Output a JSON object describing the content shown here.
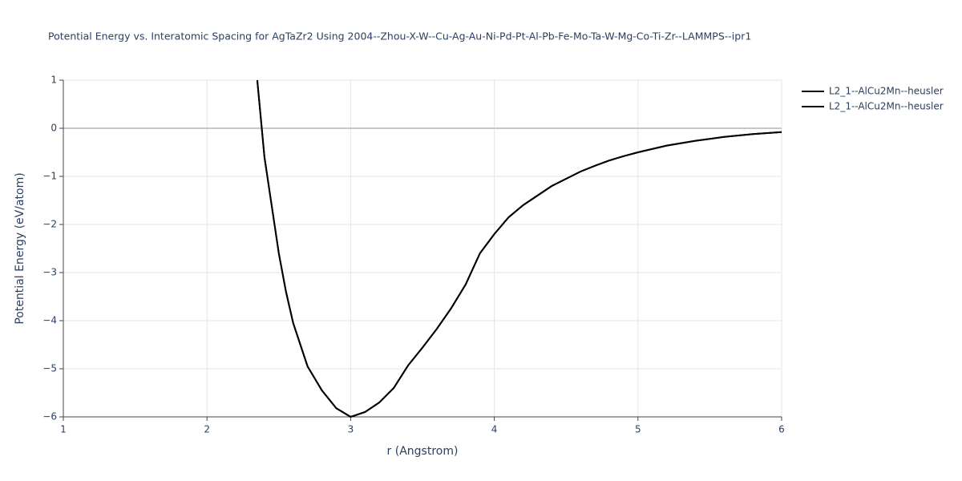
{
  "chart_data": {
    "type": "line",
    "title": "Potential Energy vs. Interatomic Spacing for AgTaZr2 Using 2004--Zhou-X-W--Cu-Ag-Au-Ni-Pd-Pt-Al-Pb-Fe-Mo-Ta-W-Mg-Co-Ti-Zr--LAMMPS--ipr1",
    "x_label": "r (Angstrom)",
    "y_label": "Potential Energy (eV/atom)",
    "x": [
      2.35,
      2.4,
      2.45,
      2.5,
      2.55,
      2.6,
      2.7,
      2.8,
      2.9,
      3.0,
      3.1,
      3.2,
      3.3,
      3.4,
      3.5,
      3.6,
      3.7,
      3.8,
      3.9,
      4.0,
      4.1,
      4.2,
      4.3,
      4.4,
      4.5,
      4.6,
      4.7,
      4.8,
      4.9,
      5.0,
      5.2,
      5.4,
      5.6,
      5.8,
      6.0
    ],
    "series": [
      {
        "name": "L2_1--AlCu2Mn--heusler",
        "color": "#000000",
        "values": [
          1.0,
          -0.6,
          -1.6,
          -2.6,
          -3.4,
          -4.05,
          -4.95,
          -5.45,
          -5.82,
          -6.0,
          -5.9,
          -5.7,
          -5.4,
          -4.93,
          -4.56,
          -4.17,
          -3.74,
          -3.25,
          -2.6,
          -2.2,
          -1.85,
          -1.6,
          -1.4,
          -1.2,
          -1.05,
          -0.9,
          -0.78,
          -0.67,
          -0.58,
          -0.5,
          -0.36,
          -0.26,
          -0.18,
          -0.12,
          -0.08
        ]
      },
      {
        "name": "L2_1--AlCu2Mn--heusler",
        "color": "#000000",
        "values": [
          1.0,
          -0.6,
          -1.6,
          -2.6,
          -3.4,
          -4.05,
          -4.95,
          -5.45,
          -5.82,
          -6.0,
          -5.9,
          -5.7,
          -5.4,
          -4.93,
          -4.56,
          -4.17,
          -3.74,
          -3.25,
          -2.6,
          -2.2,
          -1.85,
          -1.6,
          -1.4,
          -1.2,
          -1.05,
          -0.9,
          -0.78,
          -0.67,
          -0.58,
          -0.5,
          -0.36,
          -0.26,
          -0.18,
          -0.12,
          -0.08
        ]
      }
    ],
    "xlim": [
      1,
      6
    ],
    "xticks": [
      1,
      2,
      3,
      4,
      5,
      6
    ],
    "ylim": [
      -6,
      1
    ],
    "yticks": [
      1,
      0,
      {
        "value": -1,
        "label": "−1"
      },
      {
        "value": -2,
        "label": "−2"
      },
      {
        "value": -3,
        "label": "−3"
      },
      {
        "value": -4,
        "label": "−4"
      },
      {
        "value": -5,
        "label": "−5"
      },
      {
        "value": -6,
        "label": "−6"
      }
    ],
    "grid": true,
    "legend": "top-right"
  }
}
